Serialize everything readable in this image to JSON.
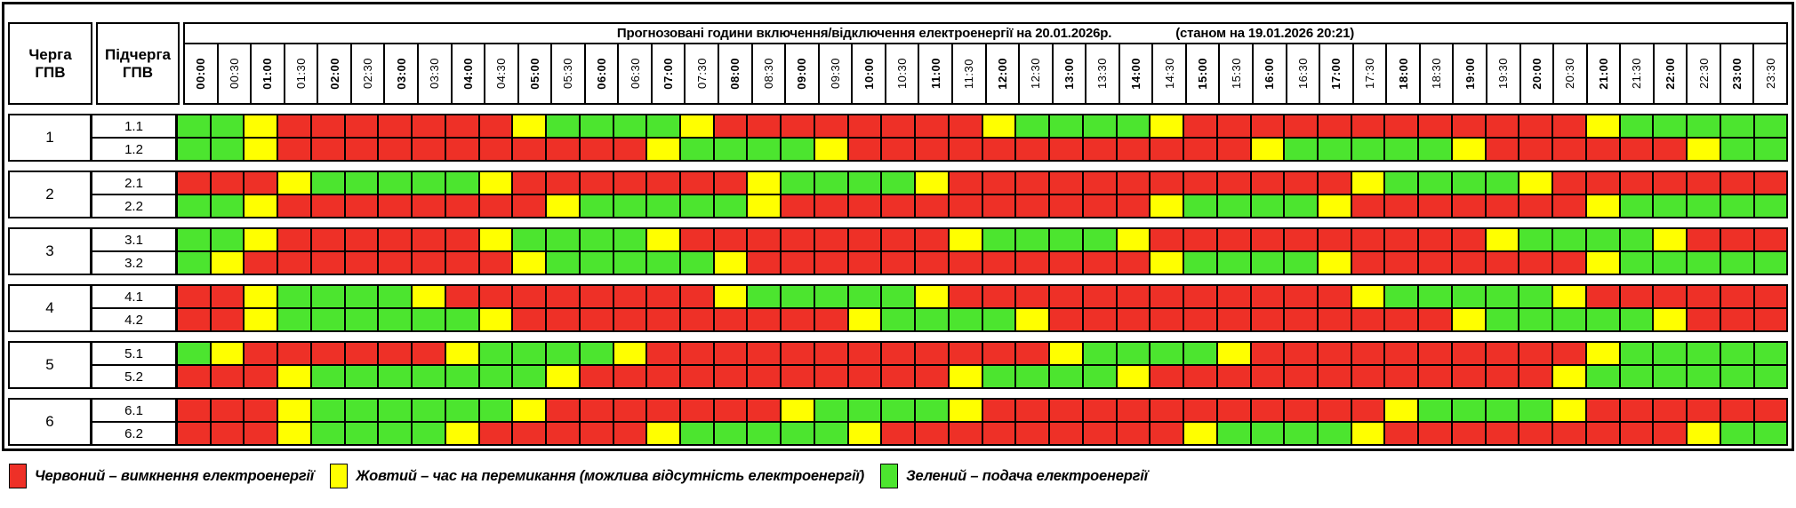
{
  "header": {
    "queue_col_label": "Черга\nГПВ",
    "subqueue_col_label": "Підчерга\nГПВ",
    "title": "Прогнозовані години включення/відключення електроенергії на 20.01.2026р.",
    "status": "(станом на 19.01.2026 20:21)",
    "times": [
      "00:00",
      "00:30",
      "01:00",
      "01:30",
      "02:00",
      "02:30",
      "03:00",
      "03:30",
      "04:00",
      "04:30",
      "05:00",
      "05:30",
      "06:00",
      "06:30",
      "07:00",
      "07:30",
      "08:00",
      "08:30",
      "09:00",
      "09:30",
      "10:00",
      "10:30",
      "11:00",
      "11:30",
      "12:00",
      "12:30",
      "13:00",
      "13:30",
      "14:00",
      "14:30",
      "15:00",
      "15:30",
      "16:00",
      "16:30",
      "17:00",
      "17:30",
      "18:00",
      "18:30",
      "19:00",
      "19:30",
      "20:00",
      "20:30",
      "21:00",
      "21:30",
      "22:00",
      "22:30",
      "23:00",
      "23:30"
    ]
  },
  "colors": {
    "R": "#EE3027",
    "Y": "#FFFF00",
    "G": "#4CE52F"
  },
  "state_names": {
    "R": "off",
    "Y": "switching",
    "G": "on"
  },
  "groups": [
    {
      "queue": "1",
      "rows": [
        {
          "sub": "1.1",
          "cells": "GGYRRRRRRRYGGGGYRRRRRRRRYGGGGYRRRRRRRRRRRRYGGGGG"
        },
        {
          "sub": "1.2",
          "cells": "GGYRRRRRRRRRRRYGGGGYRRRRRRRRRRRRYGGGGGYRRRRRRYGG"
        }
      ]
    },
    {
      "queue": "2",
      "rows": [
        {
          "sub": "2.1",
          "cells": "RRRYGGGGGYRRRRRRRYGGGGYRRRRRRRRRRRRYGGGGYRRRRRRR"
        },
        {
          "sub": "2.2",
          "cells": "GGYRRRRRRRRYGGGGGYRRRRRRRRRRRYGGGGYRRRRRRRYGGGGG"
        }
      ]
    },
    {
      "queue": "3",
      "rows": [
        {
          "sub": "3.1",
          "cells": "GGYRRRRRRYGGGGYRRRRRRRRYGGGGYRRRRRRRRRRYGGGGYRRR"
        },
        {
          "sub": "3.2",
          "cells": "GYRRRRRRRRYGGGGGYRRRRRRRRRRRRYGGGGYRRRRRRRYGGGGG"
        }
      ]
    },
    {
      "queue": "4",
      "rows": [
        {
          "sub": "4.1",
          "cells": "RRYGGGGYRRRRRRRRYGGGGGYRRRRRRRRRRRRYGGGGGYRRRRRR"
        },
        {
          "sub": "4.2",
          "cells": "RRYGGGGGGYRRRRRRRRRRYGGGGYRRRRRRRRRRRRYGGGGGYRRR"
        }
      ]
    },
    {
      "queue": "5",
      "rows": [
        {
          "sub": "5.1",
          "cells": "GYRRRRRRYGGGGYRRRRRRRRRRRRYGGGGYRRRRRRRRRRYGGGGG"
        },
        {
          "sub": "5.2",
          "cells": "RRRYGGGGGGGYRRRRRRRRRRRYGGGGYRRRRRRRRRRRRYGGGGGG"
        }
      ]
    },
    {
      "queue": "6",
      "rows": [
        {
          "sub": "6.1",
          "cells": "RRRYGGGGGGYRRRRRRRYGGGGYRRRRRRRRRRRRYGGGGYRRRRRR"
        },
        {
          "sub": "6.2",
          "cells": "RRRYGGGGYRRRRRYGGGGGYRRRRRRRRRYGGGGYRRRRRRRRRYGG"
        }
      ]
    }
  ],
  "legend": [
    {
      "color": "R",
      "label": "Червоний – вимкнення електроенергії"
    },
    {
      "color": "Y",
      "label": "Жовтий – час на перемикання (можлива відсутність електроенергії)"
    },
    {
      "color": "G",
      "label": "Зелений – подача електроенергії"
    }
  ]
}
